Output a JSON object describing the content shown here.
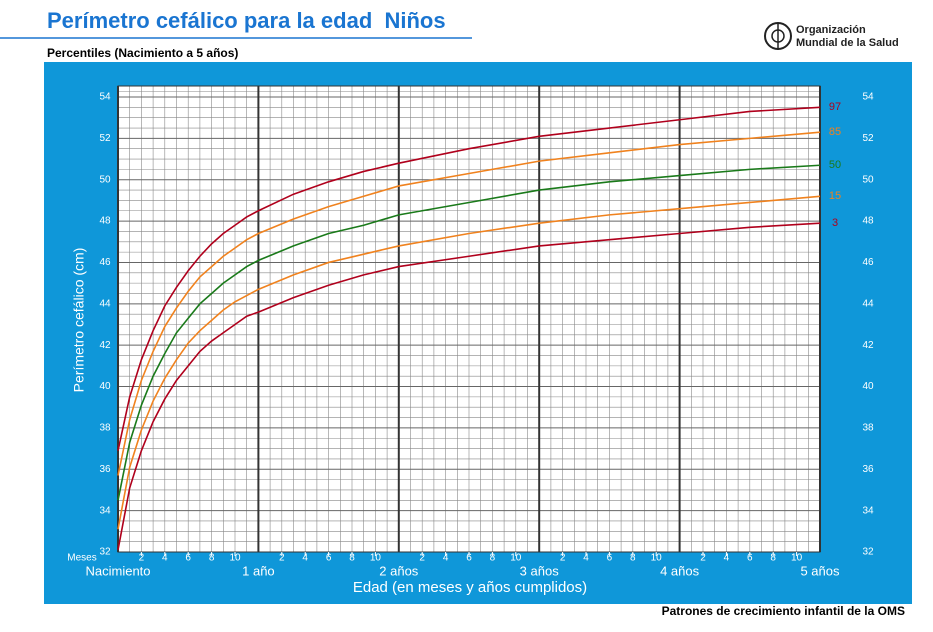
{
  "header": {
    "title": "Perímetro cefálico para la edad  Niños",
    "subtitle": "Percentiles (Nacimiento a 5 años)",
    "logo_text": [
      "Organización",
      "Mundial de la Salud"
    ]
  },
  "footer": "Patrones de crecimiento infantil de la OMS",
  "chart_data": {
    "type": "line",
    "y_label": "Perímetro cefálico (cm)",
    "x_label": "Edad (en meses y años cumplidos)",
    "x_minor_label": "Meses",
    "x": [
      0,
      1,
      2,
      3,
      4,
      5,
      6,
      7,
      8,
      9,
      10,
      11,
      12,
      15,
      18,
      21,
      24,
      30,
      36,
      42,
      48,
      54,
      60
    ],
    "series": [
      {
        "name": "97",
        "color": "#b0001c",
        "values": [
          36.9,
          39.5,
          41.3,
          42.7,
          43.9,
          44.8,
          45.6,
          46.3,
          46.9,
          47.4,
          47.8,
          48.2,
          48.5,
          49.3,
          49.9,
          50.4,
          50.8,
          51.5,
          52.1,
          52.5,
          52.9,
          53.3,
          53.5
        ]
      },
      {
        "name": "85",
        "color": "#f0821e",
        "values": [
          35.7,
          38.4,
          40.3,
          41.7,
          42.9,
          43.8,
          44.6,
          45.3,
          45.8,
          46.3,
          46.7,
          47.1,
          47.4,
          48.1,
          48.7,
          49.2,
          49.7,
          50.3,
          50.9,
          51.3,
          51.7,
          52.0,
          52.3
        ]
      },
      {
        "name": "50",
        "color": "#1a7a1a",
        "values": [
          34.5,
          37.3,
          39.1,
          40.5,
          41.6,
          42.6,
          43.3,
          44.0,
          44.5,
          45.0,
          45.4,
          45.8,
          46.1,
          46.8,
          47.4,
          47.8,
          48.3,
          48.9,
          49.5,
          49.9,
          50.2,
          50.5,
          50.7
        ]
      },
      {
        "name": "15",
        "color": "#f0821e",
        "values": [
          33.1,
          36.1,
          37.9,
          39.3,
          40.4,
          41.3,
          42.1,
          42.7,
          43.2,
          43.7,
          44.1,
          44.4,
          44.7,
          45.4,
          46.0,
          46.4,
          46.8,
          47.4,
          47.9,
          48.3,
          48.6,
          48.9,
          49.2
        ]
      },
      {
        "name": "3",
        "color": "#b0001c",
        "values": [
          32.1,
          35.1,
          36.9,
          38.3,
          39.4,
          40.3,
          41.0,
          41.7,
          42.2,
          42.6,
          43.0,
          43.4,
          43.6,
          44.3,
          44.9,
          45.4,
          45.8,
          46.3,
          46.8,
          47.1,
          47.4,
          47.7,
          47.9
        ]
      }
    ],
    "xlim": [
      0,
      60
    ],
    "ylim": [
      32,
      54
    ],
    "yticks": [
      32,
      34,
      36,
      38,
      40,
      42,
      44,
      46,
      48,
      50,
      52,
      54
    ],
    "xticks": [
      2,
      4,
      6,
      8,
      10,
      {
        "value": 14,
        "label": "2"
      },
      {
        "value": 16,
        "label": "4"
      },
      {
        "value": 18,
        "label": "6"
      },
      {
        "value": 20,
        "label": "8"
      },
      {
        "value": 22,
        "label": "10"
      },
      {
        "value": 26,
        "label": "2"
      },
      {
        "value": 28,
        "label": "4"
      },
      {
        "value": 30,
        "label": "6"
      },
      {
        "value": 32,
        "label": "8"
      },
      {
        "value": 34,
        "label": "10"
      },
      {
        "value": 38,
        "label": "2"
      },
      {
        "value": 40,
        "label": "4"
      },
      {
        "value": 42,
        "label": "6"
      },
      {
        "value": 44,
        "label": "8"
      },
      {
        "value": 46,
        "label": "10"
      },
      {
        "value": 50,
        "label": "2"
      },
      {
        "value": 52,
        "label": "4"
      },
      {
        "value": 54,
        "label": "6"
      },
      {
        "value": 56,
        "label": "8"
      },
      {
        "value": 58,
        "label": "10"
      }
    ],
    "x_major_ticks": [
      {
        "value": 0,
        "label": "Nacimiento"
      },
      {
        "value": 12,
        "label": "1 año"
      },
      {
        "value": 24,
        "label": "2 años"
      },
      {
        "value": 36,
        "label": "3 años"
      },
      {
        "value": 48,
        "label": "4 años"
      },
      {
        "value": 60,
        "label": "5 años"
      }
    ],
    "grid": true
  }
}
